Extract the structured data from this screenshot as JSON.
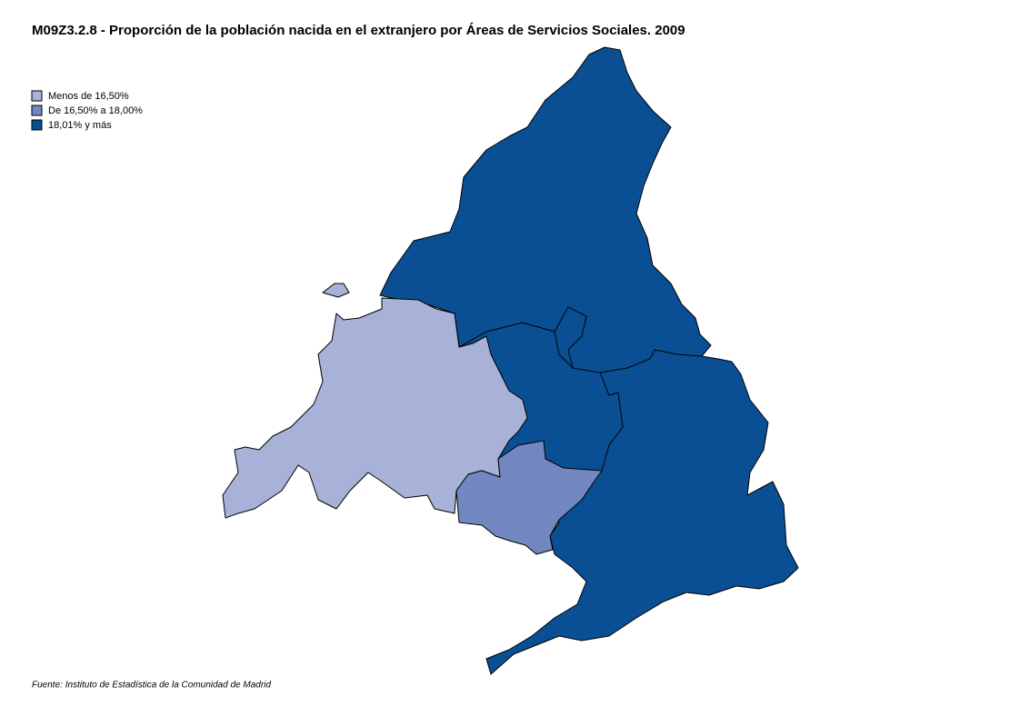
{
  "title": "M09Z3.2.8 - Proporción de la población nacida en el extranjero por Áreas de Servicios Sociales. 2009",
  "legend": {
    "items": [
      {
        "label": "Menos de 16,50%",
        "color": "#a8b2d8"
      },
      {
        "label": "De 16,50% a 18,00%",
        "color": "#7287bf"
      },
      {
        "label": "18,01%  y  más",
        "color": "#0a4f93"
      }
    ]
  },
  "source": "Fuente: Instituto de Estadística de la Comunidad de Madrid"
}
